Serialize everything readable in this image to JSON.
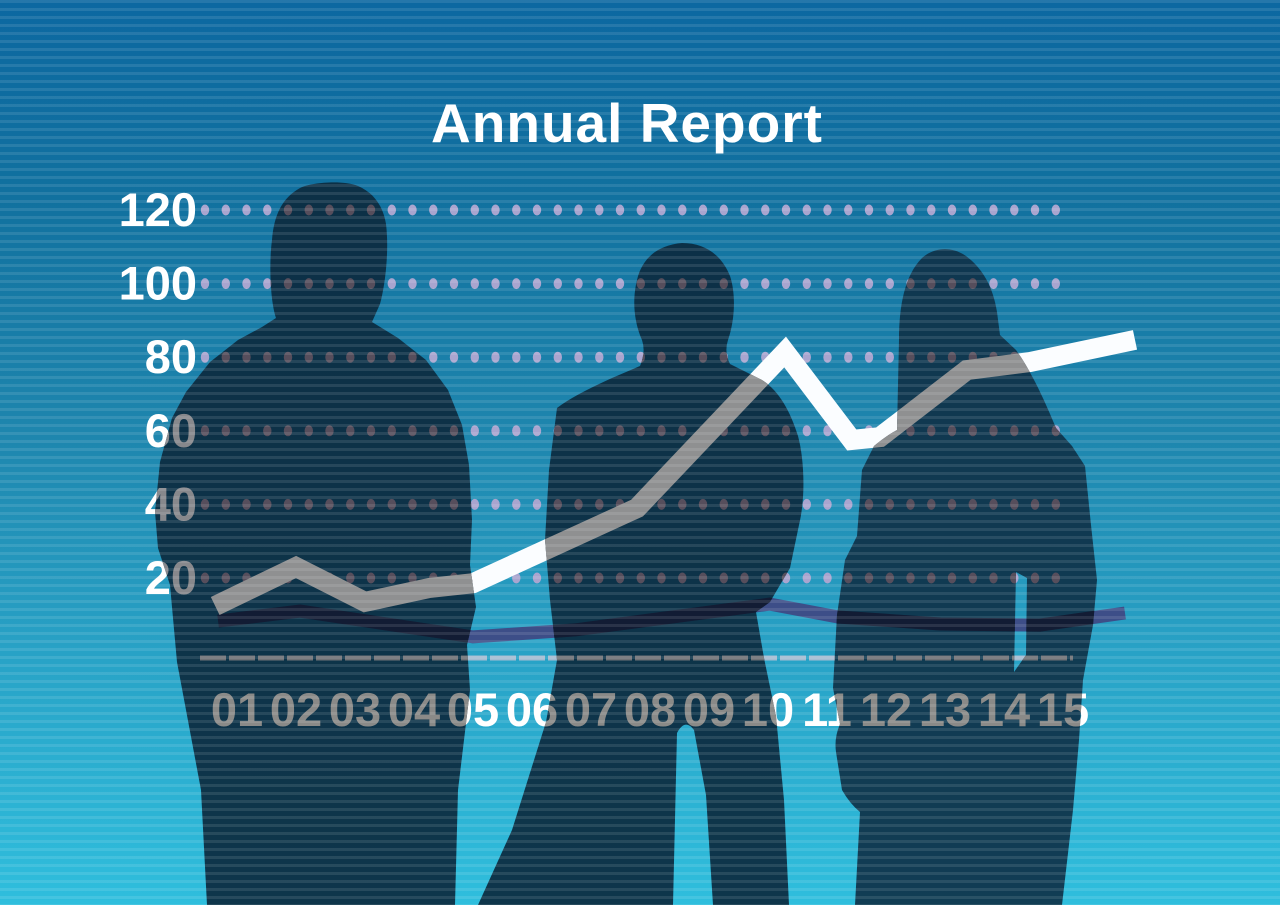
{
  "title": "Annual Report",
  "chart_data": {
    "type": "line",
    "title": "Annual Report",
    "x_tick_labels": [
      "01",
      "02",
      "03",
      "04",
      "05",
      "06",
      "07",
      "08",
      "09",
      "10",
      "11",
      "12",
      "13",
      "14",
      "15"
    ],
    "y_tick_labels": [
      120,
      100,
      80,
      60,
      40,
      20
    ],
    "ylim": [
      0,
      130
    ],
    "grid": "horizontal dotted rows at each y tick",
    "legend_position": "none",
    "series": [
      {
        "name": "main trend line (thick white/grey)",
        "per_tick_values": [
          15,
          23,
          14,
          17,
          19,
          27,
          34,
          40,
          55,
          75,
          64,
          58,
          70,
          78,
          80
        ],
        "vertices_units": [
          [
            0.63,
            12.4
          ],
          [
            2.0,
            23.0
          ],
          [
            3.17,
            13.5
          ],
          [
            4.27,
            17.3
          ],
          [
            5.0,
            18.6
          ],
          [
            7.78,
            39.0
          ],
          [
            10.29,
            81.4
          ],
          [
            11.42,
            57.5
          ],
          [
            11.9,
            58.3
          ],
          [
            13.37,
            76.5
          ],
          [
            14.44,
            78.7
          ],
          [
            16.22,
            84.7
          ]
        ]
      },
      {
        "name": "secondary flat line (dark navy)",
        "per_tick_values": [
          9,
          11,
          9,
          6,
          4,
          5,
          7,
          9,
          12,
          13,
          10,
          8,
          7,
          7,
          9
        ],
        "vertices_units": [
          [
            0.68,
            8.3
          ],
          [
            2.07,
            11.0
          ],
          [
            5.0,
            4.0
          ],
          [
            6.73,
            5.9
          ],
          [
            10.03,
            12.9
          ],
          [
            11.19,
            9.4
          ],
          [
            12.92,
            7.5
          ],
          [
            14.61,
            7.2
          ],
          [
            16.05,
            10.5
          ]
        ]
      }
    ]
  },
  "colors": {
    "background_top": "#0c68a1",
    "background_bottom": "#2fbedd",
    "title": "#ffffff",
    "silhouette_men": "#0c2b40",
    "silhouette_woman": "#0f3349",
    "over_background": {
      "label": "#ffffff",
      "x_label": "#ffffff",
      "dot": "#a9a5cf",
      "main_line": "#fbfdff",
      "secondary_line": "#3d4e88",
      "axis": "#a4bcd2"
    },
    "over_silhouette": {
      "label": "#87888c",
      "x_label": "#8a8a88",
      "dot": "#564e5c",
      "main_line": "#8f9091",
      "secondary_line": "#121c34",
      "axis": "#6f7276"
    }
  },
  "decor": {
    "figures": [
      "silhouette of businessman standing, hands behind back (left)",
      "silhouette of businessman with arms crossed (middle)",
      "silhouette of businesswoman with long hair (right)"
    ]
  }
}
